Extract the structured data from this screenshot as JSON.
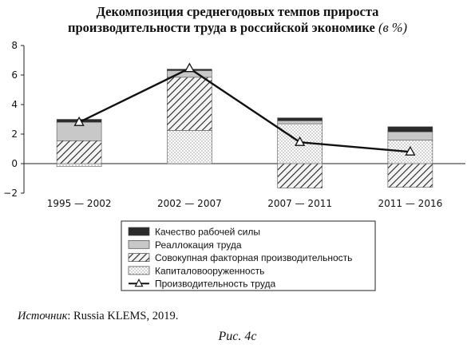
{
  "title_line1": "Декомпозиция среднегодовых темпов прироста",
  "title_line2": "производительности труда в российской экономике",
  "title_units": "(в %)",
  "source_label": "Источник",
  "source_text": ": Russia KLEMS, 2019.",
  "figure_caption": "Рис. 4с",
  "chart_data": {
    "type": "bar",
    "stacked": true,
    "categories": [
      "1995 — 2002",
      "2002 — 2007",
      "2007 — 2011",
      "2011 — 2016"
    ],
    "ylim": [
      -2,
      8
    ],
    "yticks": [
      -2,
      0,
      2,
      4,
      6,
      8
    ],
    "series": [
      {
        "name": "Капиталовооруженность",
        "pattern": "dots",
        "values": [
          -0.2,
          2.25,
          2.7,
          1.6
        ]
      },
      {
        "name": "Совокупная факторная производительность",
        "pattern": "hatch",
        "values": [
          1.55,
          3.6,
          -1.65,
          -1.6
        ]
      },
      {
        "name": "Реаллокация труда",
        "pattern": "light-gray",
        "values": [
          1.25,
          0.45,
          0.2,
          0.55
        ]
      },
      {
        "name": "Качество рабочей силы",
        "pattern": "dark",
        "values": [
          0.2,
          0.1,
          0.2,
          0.35
        ]
      }
    ],
    "line": {
      "name": "Производительность труда",
      "marker": "triangle",
      "values": [
        2.8,
        6.45,
        1.45,
        0.8
      ]
    },
    "legend": {
      "position": "bottom",
      "order": [
        "Качество рабочей силы",
        "Реаллокация труда",
        "Совокупная факторная производительность",
        "Капиталовооруженность",
        "Производительность труда"
      ]
    },
    "colors": {
      "dark": "#2b2b2b",
      "light_gray": "#c8c8c8"
    }
  }
}
